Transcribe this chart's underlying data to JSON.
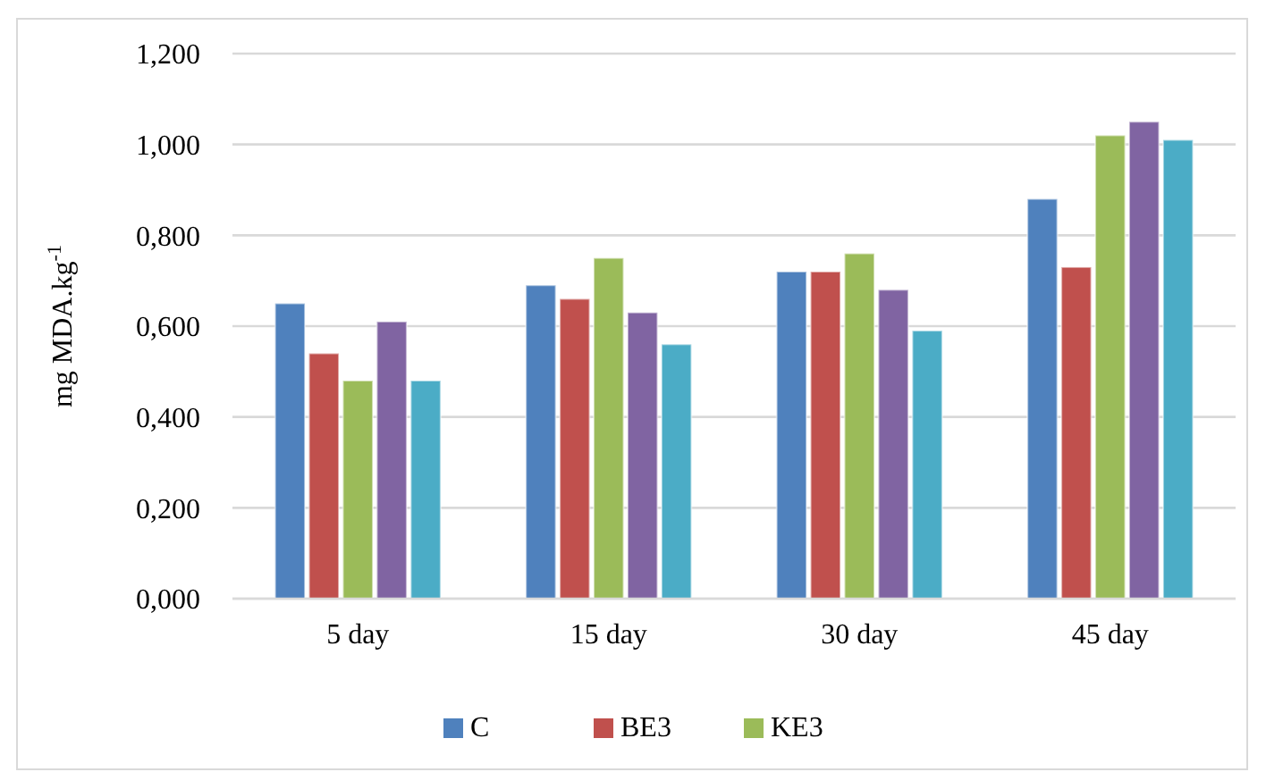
{
  "chart_data": {
    "type": "bar",
    "ylabel": "mg MDA.kg$^{-1}$",
    "categories": [
      "5 day",
      "15 day",
      "30 day",
      "45 day"
    ],
    "series": [
      {
        "name": "C",
        "color": "#4f81bd",
        "values": [
          0.65,
          0.69,
          0.72,
          0.88
        ]
      },
      {
        "name": "BE3",
        "color": "#c0504d",
        "values": [
          0.54,
          0.66,
          0.72,
          0.73
        ]
      },
      {
        "name": "KE3",
        "color": "#9bbb59",
        "values": [
          0.48,
          0.75,
          0.76,
          1.02
        ]
      },
      {
        "color": "#8064a2",
        "values": [
          0.61,
          0.63,
          0.68,
          1.05
        ]
      },
      {
        "color": "#4bacc6",
        "values": [
          0.48,
          0.56,
          0.59,
          1.01
        ]
      }
    ],
    "ylim": [
      0,
      1.2
    ],
    "yticks": [
      {
        "value": 0,
        "label": "0,000"
      },
      {
        "value": 0.2,
        "label": "0,200"
      },
      {
        "value": 0.4,
        "label": "0,400"
      },
      {
        "value": 0.6,
        "label": "0,600"
      },
      {
        "value": 0.8,
        "label": "0,800"
      },
      {
        "value": 1,
        "label": "1,000"
      },
      {
        "value": 1.2,
        "label": "1,200"
      }
    ],
    "grid": "y",
    "legend": "bottom"
  }
}
